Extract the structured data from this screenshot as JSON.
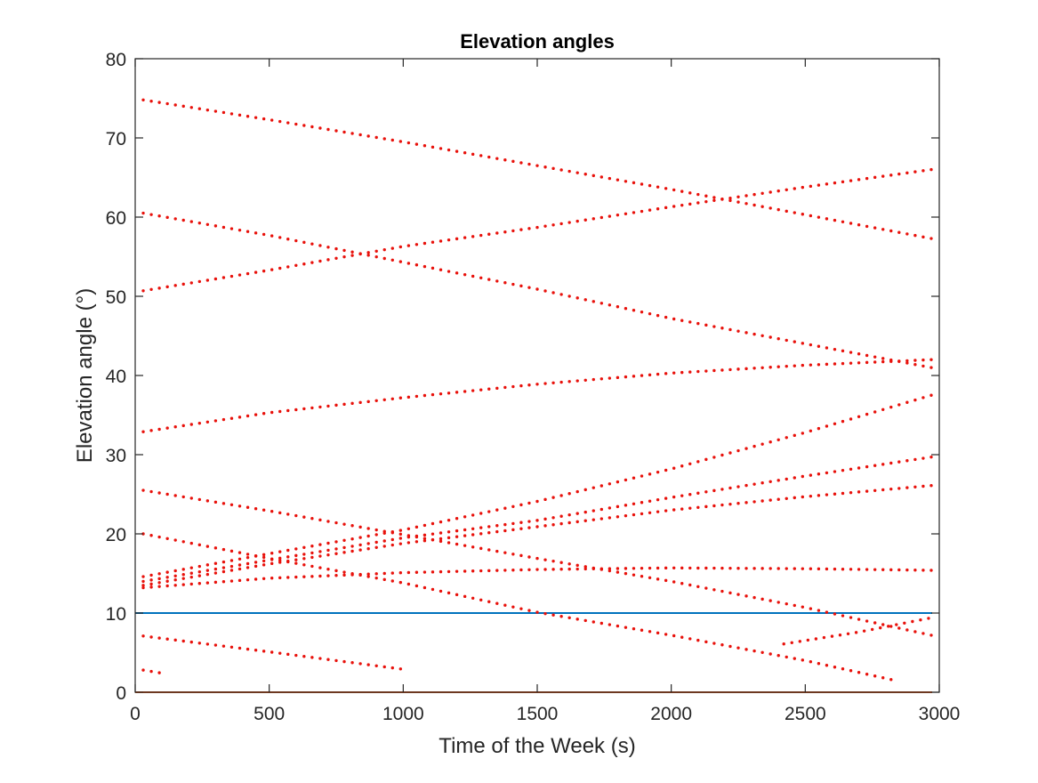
{
  "chart_data": {
    "type": "scatter",
    "title": "Elevation angles",
    "xlabel": "Time of the Week (s)",
    "ylabel": "Elevation angle (°)",
    "xlim": [
      0,
      3000
    ],
    "ylim": [
      0,
      80
    ],
    "xticks": [
      "0",
      "500",
      "1000",
      "1500",
      "2000",
      "2500",
      "3000"
    ],
    "yticks": [
      "0",
      "10",
      "20",
      "30",
      "40",
      "50",
      "60",
      "70",
      "80"
    ],
    "grid": false,
    "colors": {
      "points": "#e8120c",
      "mask_line": "#0072bd",
      "zero_line": "#d95319",
      "axes": "#262626"
    },
    "reference_lines": [
      {
        "y": 10,
        "color": "#0072bd"
      },
      {
        "y": 0,
        "color": "#d95319"
      }
    ],
    "series": [
      {
        "x": [
          30,
          500,
          1000,
          1500,
          2000,
          2500,
          2970
        ],
        "y": [
          74.8,
          72.3,
          69.5,
          66.5,
          63.5,
          60.3,
          57.3
        ]
      },
      {
        "x": [
          30,
          500,
          1000,
          1500,
          2000,
          2500,
          2970
        ],
        "y": [
          60.5,
          57.7,
          54.3,
          50.9,
          47.2,
          44.0,
          41.0
        ]
      },
      {
        "x": [
          30,
          500,
          1000,
          1500,
          2000,
          2500,
          2970
        ],
        "y": [
          50.7,
          53.3,
          56.3,
          58.7,
          61.3,
          63.8,
          66.0
        ]
      },
      {
        "x": [
          30,
          500,
          1000,
          1500,
          2000,
          2500,
          2970
        ],
        "y": [
          32.9,
          35.3,
          37.2,
          38.9,
          40.3,
          41.3,
          42.0
        ]
      },
      {
        "x": [
          30,
          500,
          1000,
          1500,
          2000,
          2500,
          2970
        ],
        "y": [
          25.5,
          22.9,
          19.9,
          16.9,
          14.0,
          10.7,
          7.2
        ]
      },
      {
        "x": [
          30,
          500,
          1000,
          1500,
          2000,
          2500,
          2820
        ],
        "y": [
          20.0,
          16.9,
          13.8,
          10.1,
          7.2,
          4.0,
          1.6
        ]
      },
      {
        "x": [
          30,
          500,
          1000,
          1500,
          2000,
          2500,
          2970
        ],
        "y": [
          14.6,
          17.5,
          20.5,
          24.1,
          28.2,
          32.8,
          37.5
        ]
      },
      {
        "x": [
          30,
          500,
          1000,
          1500,
          2000,
          2500,
          2970
        ],
        "y": [
          14.0,
          16.7,
          19.5,
          21.7,
          24.6,
          27.3,
          29.7
        ]
      },
      {
        "x": [
          30,
          500,
          1000,
          1500,
          2000,
          2500,
          2970
        ],
        "y": [
          13.5,
          16.2,
          18.8,
          20.9,
          23.0,
          24.7,
          26.1
        ]
      },
      {
        "x": [
          30,
          500,
          1000,
          1500,
          2000,
          2500,
          2970
        ],
        "y": [
          13.2,
          14.4,
          15.1,
          15.5,
          15.7,
          15.6,
          15.4
        ]
      },
      {
        "x": [
          30,
          500,
          1000
        ],
        "y": [
          7.1,
          5.1,
          2.9
        ]
      },
      {
        "x": [
          30,
          100
        ],
        "y": [
          2.8,
          2.4
        ]
      },
      {
        "x": [
          2420,
          2700,
          2970
        ],
        "y": [
          6.1,
          7.6,
          9.4
        ]
      }
    ]
  }
}
